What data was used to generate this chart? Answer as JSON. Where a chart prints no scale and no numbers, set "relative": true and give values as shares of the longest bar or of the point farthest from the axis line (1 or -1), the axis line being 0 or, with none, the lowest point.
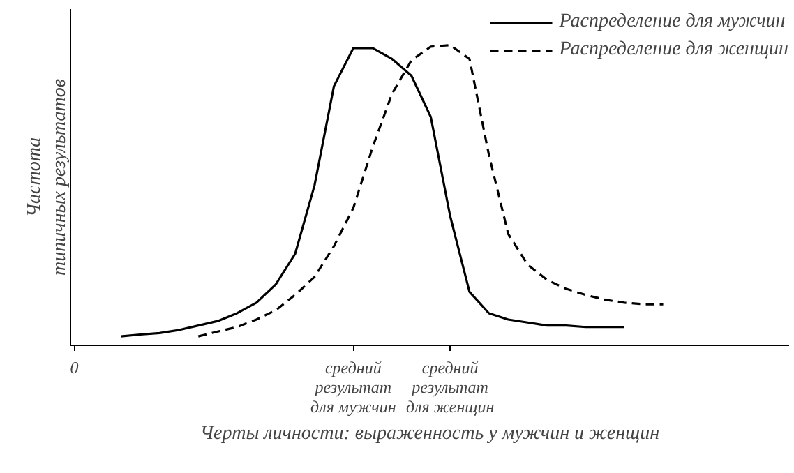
{
  "chart_data": {
    "type": "line",
    "relative": true,
    "ylabel": "Частота\nтипичных результатов",
    "xlabel": "Черты личности: выраженность у мужчин и женщин",
    "categories": [
      null,
      null,
      null,
      null,
      null,
      null,
      null,
      null,
      null,
      null,
      null,
      null,
      null,
      null,
      null,
      null,
      null,
      null,
      null,
      null,
      null,
      null,
      null,
      null,
      null,
      null,
      null,
      null,
      null
    ],
    "series": [
      {
        "name": "Распределение для мужчин",
        "color": "#000000",
        "line_style": "solid",
        "values": [
          0.03,
          0.036,
          0.041,
          0.051,
          0.066,
          0.081,
          0.107,
          0.142,
          0.203,
          0.305,
          0.533,
          0.863,
          0.99,
          0.99,
          0.954,
          0.898,
          0.761,
          0.431,
          0.178,
          0.107,
          0.086,
          0.076,
          0.066,
          0.066,
          0.061,
          0.061,
          0.061,
          null,
          null
        ]
      },
      {
        "name": "Распределение для женщин",
        "color": "#000000",
        "line_style": "dashed",
        "values": [
          null,
          null,
          null,
          null,
          0.03,
          0.046,
          0.061,
          0.086,
          0.117,
          0.168,
          0.228,
          0.33,
          0.457,
          0.66,
          0.838,
          0.949,
          0.995,
          1,
          0.954,
          0.635,
          0.371,
          0.269,
          0.218,
          0.188,
          0.168,
          0.152,
          0.142,
          0.137,
          0.137
        ]
      }
    ],
    "annotations": [
      "0",
      "средний\nрезультат\nдля мужчин",
      "средний\nрезультат\nдля женщин"
    ],
    "legend": "top right",
    "marker": "none"
  }
}
